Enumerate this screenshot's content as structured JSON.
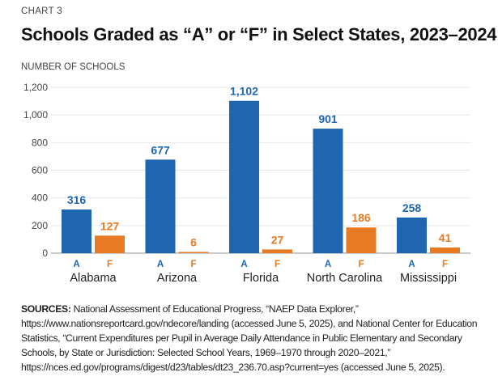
{
  "kicker": "CHART 3",
  "title": "Schools Graded as “A” or “F” in Select States, 2023–2024",
  "colors": {
    "A": "#1f66b1",
    "F": "#e87a24",
    "grid": "#e6e6e6",
    "axis": "#b5b5b5",
    "tick": "#444444"
  },
  "chart_data": {
    "type": "bar",
    "title": "Schools Graded as “A” or “F” in Select States, 2023–2024",
    "xlabel": "",
    "ylabel": "NUMBER OF SCHOOLS",
    "ylim": [
      0,
      1200
    ],
    "yticks": [
      0,
      200,
      400,
      600,
      800,
      1000,
      1200
    ],
    "ytick_labels": [
      "0",
      "200",
      "400",
      "600",
      "800",
      "1,000",
      "1,200"
    ],
    "grid": true,
    "categories": [
      "Alabama",
      "Arizona",
      "Florida",
      "North Carolina",
      "Mississippi"
    ],
    "series": [
      {
        "name": "A",
        "values": [
          316,
          677,
          1102,
          901,
          258
        ],
        "labels": [
          "316",
          "677",
          "1,102",
          "901",
          "258"
        ]
      },
      {
        "name": "F",
        "values": [
          127,
          6,
          27,
          186,
          41
        ],
        "labels": [
          "127",
          "6",
          "27",
          "186",
          "41"
        ]
      }
    ]
  },
  "sources": {
    "label": "SOURCES:",
    "text": " National Assessment of Educational Progress, “NAEP Data Explorer,” https://www.nationsreportcard.gov/ndecore/landing (accessed June 5, 2025), and National Center for Education Statistics, “Current Expenditures per Pupil in Average Daily Attendance in Public Elementary and Secondary Schools, by State or Jurisdiction: Selected School Years, 1969–1970 through 2020–2021,” https://nces.ed.gov/programs/digest/d23/tables/dt23_236.70.asp?current=yes (accessed June 5, 2025)."
  }
}
